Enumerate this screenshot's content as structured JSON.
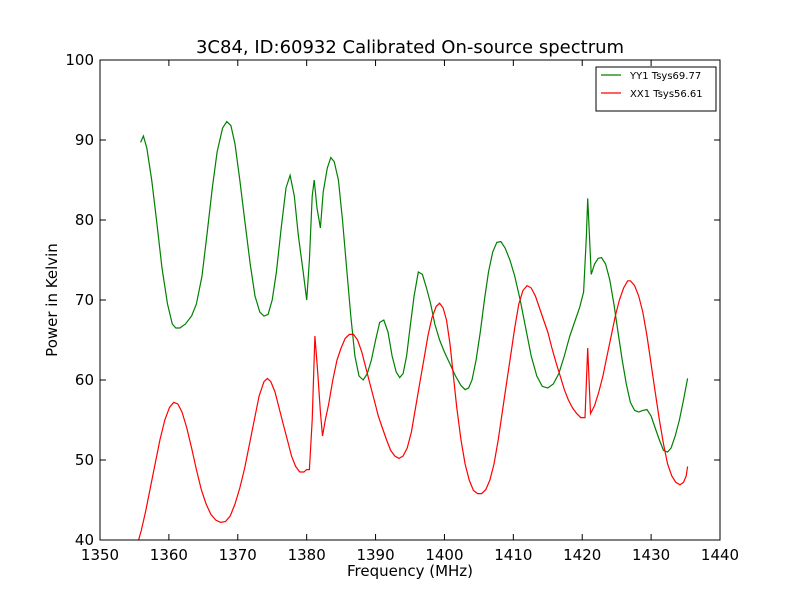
{
  "chart_data": {
    "type": "line",
    "title": "3C84, ID:60932 Calibrated On-source spectrum",
    "xlabel": "Frequency (MHz)",
    "ylabel": "Power in Kelvin",
    "xlim": [
      1350,
      1440
    ],
    "ylim": [
      40,
      100
    ],
    "xticks": [
      1350,
      1360,
      1370,
      1380,
      1390,
      1400,
      1410,
      1420,
      1430,
      1440
    ],
    "yticks": [
      40,
      50,
      60,
      70,
      80,
      90,
      100
    ],
    "legend_position": "top-right",
    "grid": false,
    "series": [
      {
        "name": "YY1 Tsys69.77",
        "color": "#008000",
        "points": [
          [
            1355.9,
            89.7
          ],
          [
            1356.3,
            90.5
          ],
          [
            1356.8,
            89.0
          ],
          [
            1357.5,
            85.0
          ],
          [
            1358.2,
            80.0
          ],
          [
            1359.0,
            74.0
          ],
          [
            1359.8,
            69.5
          ],
          [
            1360.5,
            67.0
          ],
          [
            1361.0,
            66.5
          ],
          [
            1361.6,
            66.5
          ],
          [
            1362.4,
            67.0
          ],
          [
            1363.3,
            68.0
          ],
          [
            1364.0,
            69.5
          ],
          [
            1364.8,
            73.0
          ],
          [
            1365.5,
            78.0
          ],
          [
            1366.3,
            84.0
          ],
          [
            1367.0,
            88.5
          ],
          [
            1367.8,
            91.5
          ],
          [
            1368.4,
            92.3
          ],
          [
            1369.0,
            91.8
          ],
          [
            1369.6,
            89.5
          ],
          [
            1370.3,
            85.0
          ],
          [
            1371.0,
            80.0
          ],
          [
            1371.8,
            74.5
          ],
          [
            1372.5,
            70.5
          ],
          [
            1373.2,
            68.5
          ],
          [
            1373.8,
            68.0
          ],
          [
            1374.4,
            68.2
          ],
          [
            1375.0,
            70.0
          ],
          [
            1375.6,
            73.5
          ],
          [
            1376.3,
            79.0
          ],
          [
            1377.0,
            84.0
          ],
          [
            1377.6,
            85.6
          ],
          [
            1378.2,
            83.0
          ],
          [
            1378.8,
            78.0
          ],
          [
            1379.5,
            73.5
          ],
          [
            1380.0,
            70.0
          ],
          [
            1380.4,
            75.0
          ],
          [
            1380.8,
            83.0
          ],
          [
            1381.1,
            85.0
          ],
          [
            1381.5,
            81.5
          ],
          [
            1382.0,
            79.0
          ],
          [
            1382.4,
            83.5
          ],
          [
            1383.0,
            86.5
          ],
          [
            1383.5,
            87.8
          ],
          [
            1384.0,
            87.3
          ],
          [
            1384.6,
            85.0
          ],
          [
            1385.2,
            80.0
          ],
          [
            1385.8,
            74.0
          ],
          [
            1386.4,
            68.0
          ],
          [
            1387.0,
            63.0
          ],
          [
            1387.6,
            60.5
          ],
          [
            1388.2,
            60.0
          ],
          [
            1388.8,
            60.8
          ],
          [
            1389.4,
            62.5
          ],
          [
            1390.0,
            65.0
          ],
          [
            1390.6,
            67.2
          ],
          [
            1391.2,
            67.5
          ],
          [
            1391.8,
            66.0
          ],
          [
            1392.4,
            63.0
          ],
          [
            1393.0,
            61.0
          ],
          [
            1393.5,
            60.3
          ],
          [
            1394.0,
            60.8
          ],
          [
            1394.5,
            63.0
          ],
          [
            1395.0,
            66.5
          ],
          [
            1395.6,
            70.5
          ],
          [
            1396.2,
            73.5
          ],
          [
            1396.8,
            73.2
          ],
          [
            1397.4,
            71.5
          ],
          [
            1398.0,
            69.5
          ],
          [
            1398.6,
            67.0
          ],
          [
            1399.3,
            65.0
          ],
          [
            1400.0,
            63.5
          ],
          [
            1400.8,
            62.0
          ],
          [
            1401.6,
            60.5
          ],
          [
            1402.4,
            59.3
          ],
          [
            1403.0,
            58.8
          ],
          [
            1403.5,
            59.0
          ],
          [
            1404.0,
            60.0
          ],
          [
            1404.6,
            62.5
          ],
          [
            1405.2,
            66.0
          ],
          [
            1405.8,
            70.0
          ],
          [
            1406.4,
            73.5
          ],
          [
            1407.0,
            76.0
          ],
          [
            1407.6,
            77.2
          ],
          [
            1408.2,
            77.3
          ],
          [
            1408.8,
            76.5
          ],
          [
            1409.5,
            75.0
          ],
          [
            1410.2,
            73.0
          ],
          [
            1411.0,
            70.0
          ],
          [
            1411.8,
            66.5
          ],
          [
            1412.6,
            63.0
          ],
          [
            1413.4,
            60.5
          ],
          [
            1414.2,
            59.2
          ],
          [
            1415.0,
            59.0
          ],
          [
            1415.8,
            59.5
          ],
          [
            1416.6,
            60.8
          ],
          [
            1417.4,
            63.0
          ],
          [
            1418.2,
            65.5
          ],
          [
            1419.0,
            67.5
          ],
          [
            1419.6,
            69.0
          ],
          [
            1420.2,
            71.0
          ],
          [
            1420.6,
            78.0
          ],
          [
            1420.8,
            82.7
          ],
          [
            1421.0,
            79.0
          ],
          [
            1421.3,
            73.2
          ],
          [
            1421.8,
            74.5
          ],
          [
            1422.3,
            75.2
          ],
          [
            1422.8,
            75.3
          ],
          [
            1423.4,
            74.5
          ],
          [
            1424.0,
            72.5
          ],
          [
            1424.6,
            69.5
          ],
          [
            1425.2,
            66.0
          ],
          [
            1425.8,
            62.5
          ],
          [
            1426.4,
            59.5
          ],
          [
            1427.0,
            57.2
          ],
          [
            1427.6,
            56.2
          ],
          [
            1428.2,
            56.0
          ],
          [
            1428.8,
            56.2
          ],
          [
            1429.4,
            56.3
          ],
          [
            1430.0,
            55.5
          ],
          [
            1430.6,
            54.0
          ],
          [
            1431.2,
            52.5
          ],
          [
            1431.8,
            51.2
          ],
          [
            1432.4,
            51.0
          ],
          [
            1432.9,
            51.5
          ],
          [
            1433.5,
            53.0
          ],
          [
            1434.1,
            55.0
          ],
          [
            1434.7,
            57.5
          ],
          [
            1435.3,
            60.2
          ]
        ]
      },
      {
        "name": "XX1 Tsys56.61",
        "color": "#ff0000",
        "points": [
          [
            1355.6,
            40.0
          ],
          [
            1356.0,
            41.2
          ],
          [
            1356.6,
            43.5
          ],
          [
            1357.3,
            46.5
          ],
          [
            1358.0,
            49.5
          ],
          [
            1358.7,
            52.5
          ],
          [
            1359.4,
            55.0
          ],
          [
            1360.1,
            56.6
          ],
          [
            1360.7,
            57.2
          ],
          [
            1361.3,
            57.0
          ],
          [
            1361.9,
            56.0
          ],
          [
            1362.6,
            54.0
          ],
          [
            1363.3,
            51.5
          ],
          [
            1364.0,
            48.8
          ],
          [
            1364.7,
            46.3
          ],
          [
            1365.4,
            44.5
          ],
          [
            1366.1,
            43.2
          ],
          [
            1366.8,
            42.5
          ],
          [
            1367.5,
            42.2
          ],
          [
            1368.2,
            42.3
          ],
          [
            1368.9,
            43.0
          ],
          [
            1369.6,
            44.5
          ],
          [
            1370.3,
            46.5
          ],
          [
            1371.0,
            49.0
          ],
          [
            1371.7,
            52.0
          ],
          [
            1372.4,
            55.0
          ],
          [
            1373.1,
            58.0
          ],
          [
            1373.8,
            59.8
          ],
          [
            1374.3,
            60.2
          ],
          [
            1374.8,
            59.8
          ],
          [
            1375.4,
            58.5
          ],
          [
            1376.0,
            56.5
          ],
          [
            1376.6,
            54.5
          ],
          [
            1377.2,
            52.5
          ],
          [
            1377.8,
            50.5
          ],
          [
            1378.4,
            49.2
          ],
          [
            1379.0,
            48.5
          ],
          [
            1379.6,
            48.5
          ],
          [
            1380.0,
            48.8
          ],
          [
            1380.4,
            48.8
          ],
          [
            1380.8,
            55.0
          ],
          [
            1381.2,
            65.5
          ],
          [
            1381.6,
            61.0
          ],
          [
            1382.0,
            56.0
          ],
          [
            1382.3,
            53.0
          ],
          [
            1382.7,
            55.0
          ],
          [
            1383.2,
            57.0
          ],
          [
            1383.8,
            60.0
          ],
          [
            1384.4,
            62.5
          ],
          [
            1385.0,
            64.0
          ],
          [
            1385.6,
            65.2
          ],
          [
            1386.2,
            65.7
          ],
          [
            1386.8,
            65.7
          ],
          [
            1387.4,
            65.0
          ],
          [
            1388.0,
            63.5
          ],
          [
            1388.6,
            61.5
          ],
          [
            1389.2,
            59.5
          ],
          [
            1389.8,
            57.5
          ],
          [
            1390.4,
            55.5
          ],
          [
            1391.0,
            54.0
          ],
          [
            1391.6,
            52.5
          ],
          [
            1392.2,
            51.2
          ],
          [
            1392.8,
            50.5
          ],
          [
            1393.4,
            50.2
          ],
          [
            1394.0,
            50.5
          ],
          [
            1394.6,
            51.5
          ],
          [
            1395.2,
            53.5
          ],
          [
            1395.8,
            56.5
          ],
          [
            1396.4,
            59.5
          ],
          [
            1397.0,
            62.5
          ],
          [
            1397.6,
            65.5
          ],
          [
            1398.2,
            67.8
          ],
          [
            1398.8,
            69.2
          ],
          [
            1399.3,
            69.6
          ],
          [
            1399.8,
            69.0
          ],
          [
            1400.3,
            67.5
          ],
          [
            1400.8,
            64.5
          ],
          [
            1401.3,
            60.5
          ],
          [
            1401.8,
            56.5
          ],
          [
            1402.4,
            52.5
          ],
          [
            1403.0,
            49.5
          ],
          [
            1403.6,
            47.5
          ],
          [
            1404.2,
            46.2
          ],
          [
            1404.8,
            45.8
          ],
          [
            1405.4,
            45.8
          ],
          [
            1406.0,
            46.3
          ],
          [
            1406.6,
            47.5
          ],
          [
            1407.2,
            49.5
          ],
          [
            1407.8,
            52.5
          ],
          [
            1408.4,
            56.0
          ],
          [
            1409.0,
            59.5
          ],
          [
            1409.6,
            63.0
          ],
          [
            1410.2,
            66.5
          ],
          [
            1410.8,
            69.5
          ],
          [
            1411.4,
            71.2
          ],
          [
            1412.0,
            71.8
          ],
          [
            1412.6,
            71.5
          ],
          [
            1413.2,
            70.5
          ],
          [
            1413.8,
            69.0
          ],
          [
            1414.4,
            67.5
          ],
          [
            1415.0,
            66.0
          ],
          [
            1415.6,
            64.0
          ],
          [
            1416.2,
            62.2
          ],
          [
            1416.8,
            60.5
          ],
          [
            1417.4,
            58.8
          ],
          [
            1418.0,
            57.5
          ],
          [
            1418.6,
            56.5
          ],
          [
            1419.2,
            55.8
          ],
          [
            1419.8,
            55.3
          ],
          [
            1420.4,
            55.3
          ],
          [
            1420.8,
            64.0
          ],
          [
            1421.2,
            55.8
          ],
          [
            1421.8,
            56.8
          ],
          [
            1422.4,
            58.5
          ],
          [
            1423.0,
            60.5
          ],
          [
            1423.6,
            63.0
          ],
          [
            1424.2,
            65.5
          ],
          [
            1424.8,
            68.0
          ],
          [
            1425.4,
            70.0
          ],
          [
            1426.0,
            71.5
          ],
          [
            1426.6,
            72.4
          ],
          [
            1427.0,
            72.4
          ],
          [
            1427.6,
            71.8
          ],
          [
            1428.2,
            70.5
          ],
          [
            1428.8,
            68.5
          ],
          [
            1429.4,
            65.5
          ],
          [
            1430.0,
            62.0
          ],
          [
            1430.6,
            58.5
          ],
          [
            1431.2,
            55.0
          ],
          [
            1431.8,
            52.0
          ],
          [
            1432.4,
            49.5
          ],
          [
            1433.0,
            48.0
          ],
          [
            1433.6,
            47.2
          ],
          [
            1434.2,
            46.9
          ],
          [
            1434.7,
            47.2
          ],
          [
            1435.1,
            48.0
          ],
          [
            1435.3,
            49.2
          ]
        ]
      }
    ]
  }
}
